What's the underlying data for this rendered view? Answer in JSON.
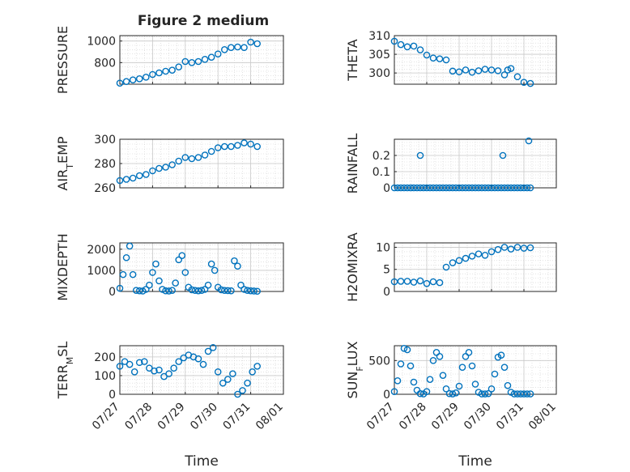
{
  "figure": {
    "title": "Figure 2 medium"
  },
  "colors": {
    "marker": "#0072BD",
    "axis": "#262626",
    "grid": "#d0d0d0",
    "background": "#ffffff"
  },
  "chart_data": [
    {
      "type": "scatter",
      "id": "pressure",
      "title": "Figure 2 medium",
      "xlabel": "",
      "ylabel": "PRESSURE",
      "xlim": [
        "07/27",
        "08/01"
      ],
      "ylim": [
        600,
        1050
      ],
      "yticks": [
        800,
        1000
      ],
      "grid": true,
      "minor_grid": true,
      "x": [
        27.0,
        27.2,
        27.4,
        27.6,
        27.8,
        28.0,
        28.2,
        28.4,
        28.6,
        28.8,
        29.0,
        29.2,
        29.4,
        29.6,
        29.8,
        30.0,
        30.2,
        30.4,
        30.6,
        30.8,
        31.0,
        31.2
      ],
      "y": [
        610,
        625,
        640,
        650,
        665,
        690,
        705,
        720,
        730,
        760,
        810,
        800,
        810,
        830,
        850,
        880,
        920,
        940,
        945,
        940,
        990,
        975
      ]
    },
    {
      "type": "scatter",
      "id": "theta",
      "title": "",
      "xlabel": "",
      "ylabel": "THETA",
      "xlim": [
        "07/27",
        "08/01"
      ],
      "ylim": [
        297,
        310
      ],
      "yticks": [
        300,
        305,
        310
      ],
      "grid": true,
      "minor_grid": true,
      "x": [
        27.0,
        27.2,
        27.4,
        27.6,
        27.8,
        28.0,
        28.2,
        28.4,
        28.6,
        28.8,
        29.0,
        29.2,
        29.4,
        29.6,
        29.8,
        30.0,
        30.2,
        30.4,
        30.5,
        30.6,
        30.8,
        31.0,
        31.2
      ],
      "y": [
        308.5,
        307.6,
        307.0,
        307.2,
        306.2,
        304.8,
        304.0,
        303.8,
        303.5,
        300.5,
        300.3,
        300.8,
        300.2,
        300.6,
        301.0,
        300.8,
        300.6,
        299.5,
        300.8,
        301.2,
        299.0,
        297.5,
        297.2
      ]
    },
    {
      "type": "scatter",
      "id": "air_temp",
      "title": "",
      "xlabel": "",
      "ylabel": "AIR_TEMP",
      "ylabel_parts": [
        "AIR",
        "T",
        "EMP"
      ],
      "xlim": [
        "07/27",
        "08/01"
      ],
      "ylim": [
        260,
        300
      ],
      "yticks": [
        260,
        280,
        300
      ],
      "grid": true,
      "minor_grid": true,
      "x": [
        27.0,
        27.2,
        27.4,
        27.6,
        27.8,
        28.0,
        28.2,
        28.4,
        28.6,
        28.8,
        29.0,
        29.2,
        29.4,
        29.6,
        29.8,
        30.0,
        30.2,
        30.4,
        30.6,
        30.8,
        31.0,
        31.2
      ],
      "y": [
        266,
        267,
        268,
        270,
        271,
        274,
        276,
        277,
        279,
        282,
        285,
        284,
        285,
        287,
        290,
        293,
        294,
        294,
        295,
        297,
        296,
        294
      ]
    },
    {
      "type": "scatter",
      "id": "rainfall",
      "title": "",
      "xlabel": "",
      "ylabel": "RAINFALL",
      "xlim": [
        "07/27",
        "08/01"
      ],
      "ylim": [
        0,
        0.3
      ],
      "yticks": [
        0,
        0.1,
        0.2
      ],
      "ytick_labels": [
        "0",
        "0.1",
        "0.2"
      ],
      "grid": true,
      "minor_grid": true,
      "x": [
        27.0,
        27.1,
        27.2,
        27.3,
        27.4,
        27.5,
        27.6,
        27.7,
        27.8,
        27.9,
        28.0,
        28.1,
        28.2,
        28.3,
        28.4,
        28.5,
        28.6,
        28.7,
        28.8,
        28.9,
        29.0,
        29.1,
        29.2,
        29.3,
        29.4,
        29.5,
        29.6,
        29.7,
        29.8,
        29.9,
        30.0,
        30.1,
        30.2,
        30.3,
        30.4,
        30.5,
        30.6,
        30.7,
        30.8,
        30.9,
        31.0,
        31.1,
        31.2,
        27.8,
        30.35,
        31.15
      ],
      "y": [
        0,
        0,
        0,
        0,
        0,
        0,
        0,
        0,
        0,
        0,
        0,
        0,
        0,
        0,
        0,
        0,
        0,
        0,
        0,
        0,
        0,
        0,
        0,
        0,
        0,
        0,
        0,
        0,
        0,
        0,
        0,
        0,
        0,
        0,
        0,
        0,
        0,
        0,
        0,
        0,
        0,
        0,
        0,
        0.2,
        0.2,
        0.29
      ]
    },
    {
      "type": "scatter",
      "id": "mixdepth",
      "title": "",
      "xlabel": "",
      "ylabel": "MIXDEPTH",
      "xlim": [
        "07/27",
        "08/01"
      ],
      "ylim": [
        0,
        2300
      ],
      "yticks": [
        0,
        1000,
        2000
      ],
      "grid": true,
      "minor_grid": true,
      "x": [
        27.0,
        27.1,
        27.2,
        27.3,
        27.4,
        27.5,
        27.6,
        27.7,
        27.8,
        27.9,
        28.0,
        28.1,
        28.2,
        28.3,
        28.4,
        28.5,
        28.6,
        28.7,
        28.8,
        28.9,
        29.0,
        29.1,
        29.2,
        29.3,
        29.4,
        29.5,
        29.6,
        29.7,
        29.8,
        29.9,
        30.0,
        30.1,
        30.2,
        30.3,
        30.4,
        30.5,
        30.6,
        30.7,
        30.8,
        30.9,
        31.0,
        31.1,
        31.2
      ],
      "y": [
        150,
        800,
        1600,
        2150,
        800,
        50,
        30,
        20,
        100,
        300,
        900,
        1300,
        500,
        100,
        30,
        20,
        50,
        400,
        1500,
        1700,
        900,
        200,
        80,
        50,
        30,
        50,
        100,
        300,
        1300,
        1000,
        200,
        80,
        50,
        40,
        30,
        1450,
        1200,
        300,
        100,
        50,
        30,
        20,
        10
      ]
    },
    {
      "type": "scatter",
      "id": "h2omixra",
      "title": "",
      "xlabel": "",
      "ylabel": "H2OMIXRA",
      "xlim": [
        "07/27",
        "08/01"
      ],
      "ylim": [
        0,
        11
      ],
      "yticks": [
        0,
        5,
        10
      ],
      "grid": true,
      "minor_grid": true,
      "x": [
        27.0,
        27.2,
        27.4,
        27.6,
        27.8,
        28.0,
        28.2,
        28.4,
        28.6,
        28.8,
        29.0,
        29.2,
        29.4,
        29.6,
        29.8,
        30.0,
        30.2,
        30.4,
        30.6,
        30.8,
        31.0,
        31.2
      ],
      "y": [
        2.2,
        2.3,
        2.3,
        2.1,
        2.4,
        1.8,
        2.2,
        2.0,
        5.5,
        6.5,
        7.0,
        7.5,
        8.0,
        8.5,
        8.2,
        9.0,
        9.5,
        10.0,
        9.6,
        10.0,
        9.8,
        9.9
      ]
    },
    {
      "type": "scatter",
      "id": "terr_msl",
      "title": "",
      "xlabel": "Time",
      "ylabel": "TERR_MSL",
      "ylabel_parts": [
        "TERR",
        "M",
        "SL"
      ],
      "xlim": [
        "07/27",
        "08/01"
      ],
      "ylim": [
        0,
        260
      ],
      "yticks": [
        0,
        100,
        200
      ],
      "grid": true,
      "minor_grid": true,
      "xticks": [
        "07/27",
        "07/28",
        "07/29",
        "07/30",
        "07/31",
        "08/01"
      ],
      "x": [
        27.0,
        27.15,
        27.3,
        27.45,
        27.6,
        27.75,
        27.9,
        28.05,
        28.2,
        28.35,
        28.5,
        28.65,
        28.8,
        28.95,
        29.1,
        29.25,
        29.4,
        29.55,
        29.7,
        29.85,
        30.0,
        30.15,
        30.3,
        30.45,
        30.6,
        30.75,
        30.9,
        31.05,
        31.2
      ],
      "y": [
        150,
        175,
        160,
        120,
        170,
        175,
        140,
        125,
        130,
        95,
        110,
        140,
        175,
        195,
        210,
        200,
        190,
        160,
        230,
        250,
        120,
        60,
        80,
        110,
        0,
        20,
        60,
        120,
        150
      ]
    },
    {
      "type": "scatter",
      "id": "sun_flux",
      "title": "",
      "xlabel": "Time",
      "ylabel": "SUN_FLUX",
      "ylabel_parts": [
        "SUN",
        "F",
        "LUX"
      ],
      "xlim": [
        "07/27",
        "08/01"
      ],
      "ylim": [
        0,
        720
      ],
      "yticks": [
        0,
        500
      ],
      "grid": true,
      "minor_grid": true,
      "xticks": [
        "07/27",
        "07/28",
        "07/29",
        "07/30",
        "07/31",
        "08/01"
      ],
      "x": [
        27.0,
        27.1,
        27.2,
        27.3,
        27.4,
        27.5,
        27.6,
        27.7,
        27.8,
        27.9,
        28.0,
        28.1,
        28.2,
        28.3,
        28.4,
        28.5,
        28.6,
        28.7,
        28.8,
        28.9,
        29.0,
        29.1,
        29.2,
        29.3,
        29.4,
        29.5,
        29.6,
        29.7,
        29.8,
        29.9,
        30.0,
        30.1,
        30.2,
        30.3,
        30.4,
        30.5,
        30.6,
        30.7,
        30.8,
        30.9,
        31.0,
        31.1,
        31.2
      ],
      "y": [
        40,
        200,
        450,
        680,
        660,
        420,
        180,
        60,
        10,
        5,
        40,
        220,
        500,
        620,
        560,
        280,
        80,
        10,
        5,
        20,
        120,
        400,
        560,
        620,
        420,
        150,
        30,
        5,
        5,
        10,
        80,
        300,
        550,
        580,
        400,
        130,
        30,
        5,
        5,
        5,
        5,
        5,
        5
      ]
    }
  ]
}
